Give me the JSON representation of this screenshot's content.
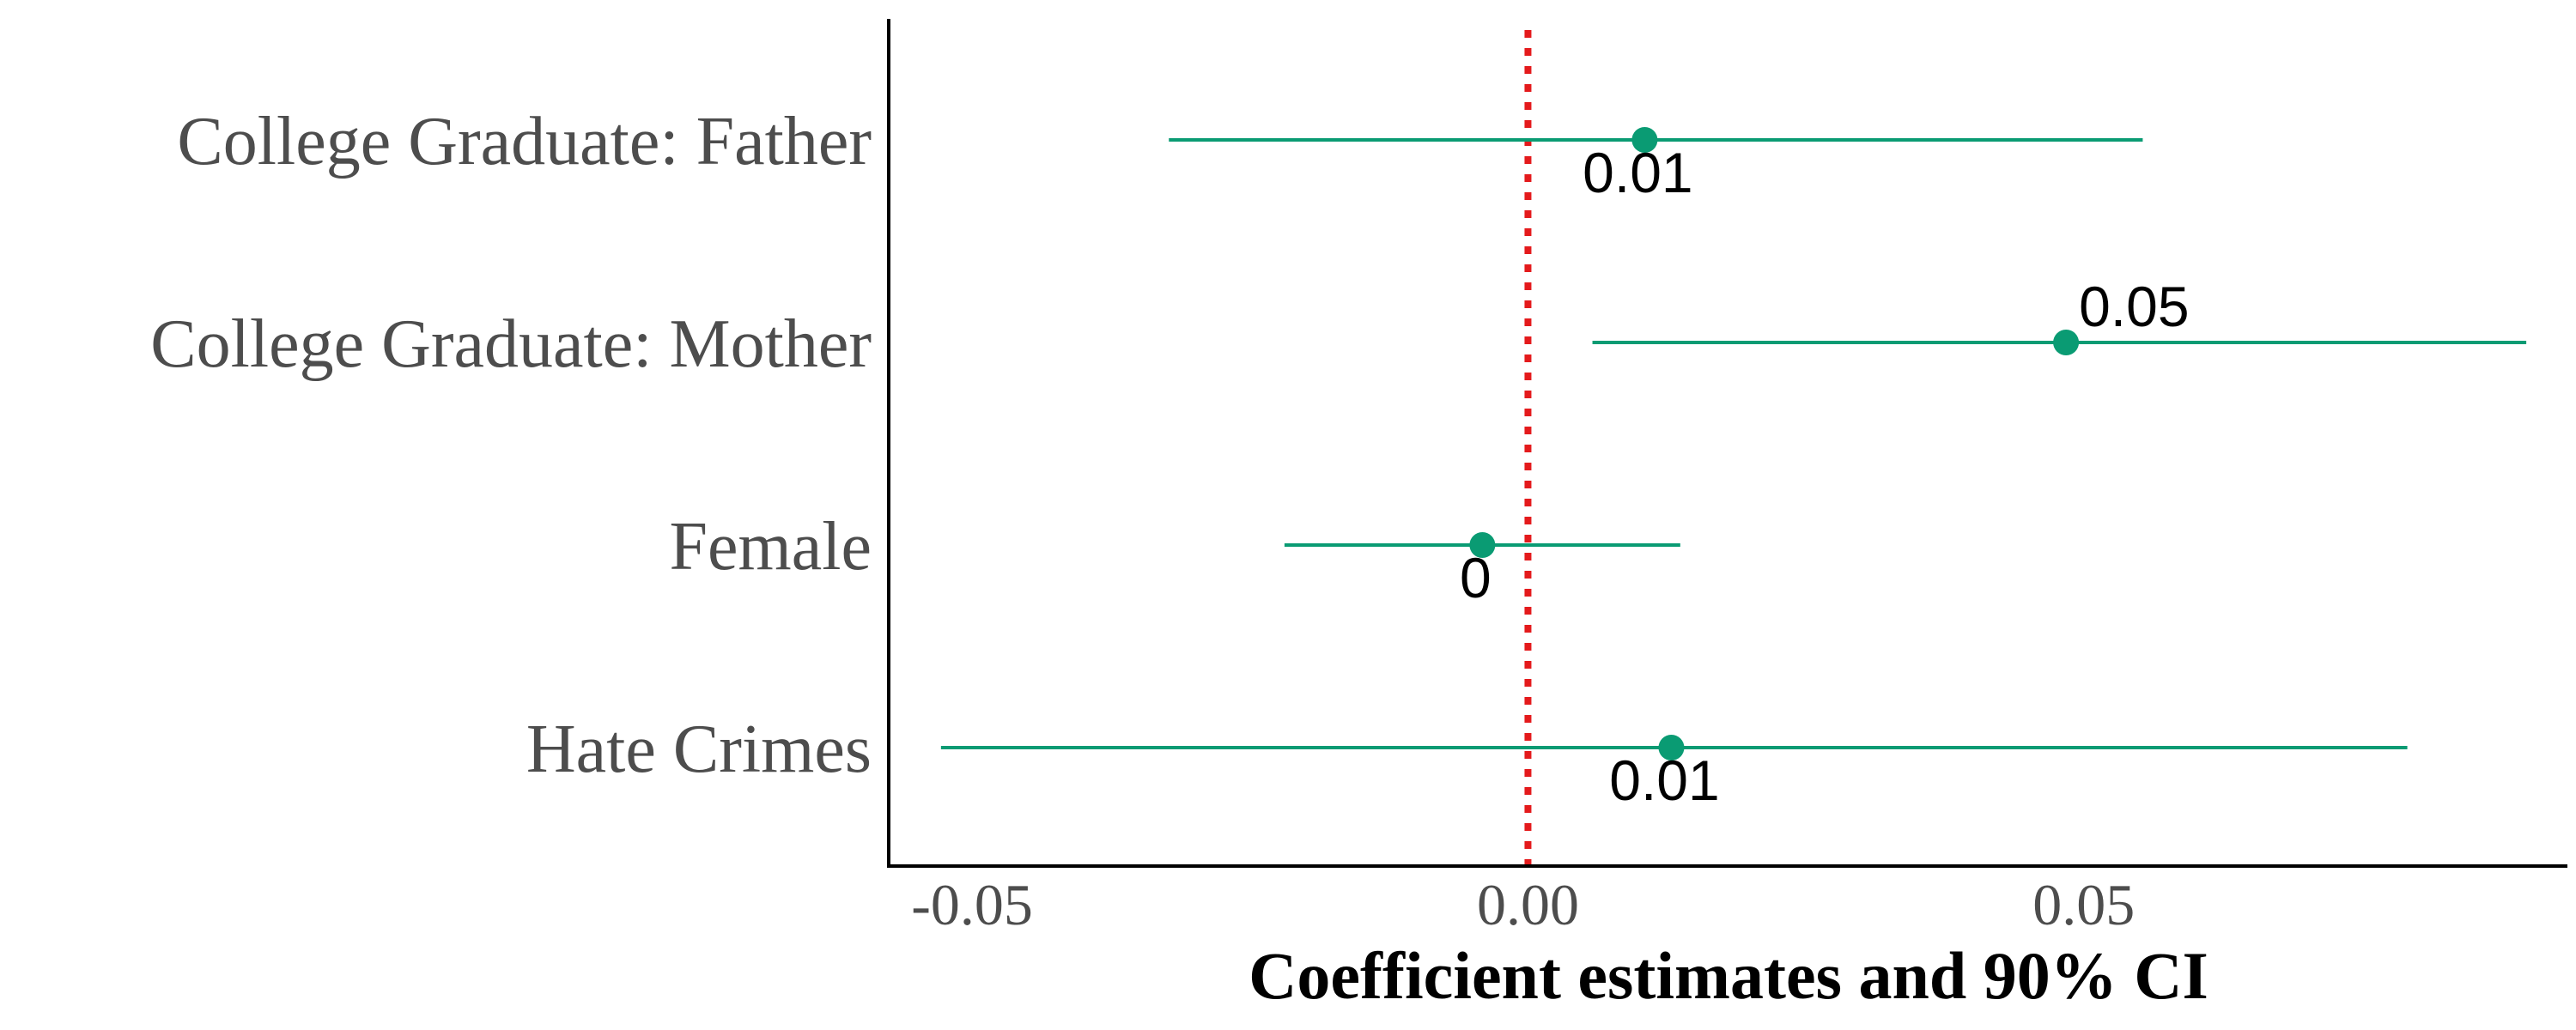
{
  "chart_data": {
    "type": "scatter",
    "subtype": "coefficient-plot-with-error-bars",
    "orientation": "horizontal",
    "title": "",
    "xlabel": "Coefficient estimates and 90% CI",
    "ylabel": "",
    "xlim": [
      -0.0575,
      0.0935
    ],
    "x_ticks": [
      {
        "value": -0.05,
        "label": "-0.05"
      },
      {
        "value": 0.0,
        "label": "0.00"
      },
      {
        "value": 0.05,
        "label": "0.05"
      }
    ],
    "reference_line": {
      "value": 0,
      "style": "dotted",
      "color": "#e41a1c"
    },
    "grid": false,
    "legend": "none",
    "point_color": "#0a9b73",
    "categories": [
      "College Graduate: Father",
      "College Graduate: Mother",
      "Female",
      "Hate Crimes"
    ],
    "estimates": [
      {
        "category": "College Graduate: Father",
        "estimate": 0.0105,
        "ci_low": -0.0323,
        "ci_high": 0.0553,
        "label": "0.01",
        "label_position": "below"
      },
      {
        "category": "College Graduate: Mother",
        "estimate": 0.0484,
        "ci_low": 0.0058,
        "ci_high": 0.0898,
        "label": "0.05",
        "label_position": "above"
      },
      {
        "category": "Female",
        "estimate": -0.0041,
        "ci_low": -0.0219,
        "ci_high": 0.0137,
        "label": "0",
        "label_position": "below"
      },
      {
        "category": "Hate Crimes",
        "estimate": 0.0129,
        "ci_low": -0.0528,
        "ci_high": 0.0791,
        "label": "0.01",
        "label_position": "below"
      }
    ]
  }
}
